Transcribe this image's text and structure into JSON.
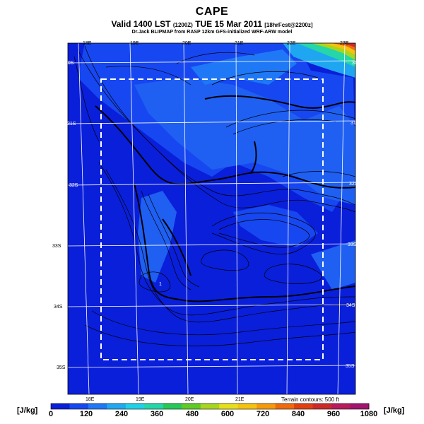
{
  "header": {
    "title": "CAPE",
    "subtitle_main": "Valid 1400 LST",
    "subtitle_small1": "(1200Z)",
    "subtitle_date": "TUE 15 Mar 2011",
    "subtitle_small2": "[18hrFcst@2200z]",
    "credit": "Dr.Jack BLIPMAP from RASP 12km GFS-initialized WRF-ARW model"
  },
  "map": {
    "lon_labels_top": [
      "18E",
      "19E",
      "20E",
      "21E",
      "22E",
      "23E"
    ],
    "lon_labels_bottom": [
      "18E",
      "19E",
      "20E",
      "21E"
    ],
    "lat_labels_left": [
      "30S",
      "31S",
      "32S",
      "33S",
      "34S",
      "35S"
    ],
    "lat_labels_right": [
      "30S",
      "31S",
      "32S",
      "33S",
      "34S",
      "35S"
    ],
    "terrain_note": "Terrain contours: 500 ft",
    "marker": "1"
  },
  "colorbar": {
    "unit_left": "[J/kg]",
    "unit_right": "[J/kg]",
    "ticks": [
      "0",
      "120",
      "240",
      "360",
      "480",
      "600",
      "720",
      "840",
      "960",
      "1080"
    ],
    "colors": [
      "#0a1fd9",
      "#1747f0",
      "#1f78f5",
      "#21a9f0",
      "#1fd1e6",
      "#25d6a8",
      "#26c957",
      "#5fcc26",
      "#a8d61e",
      "#e6e01a",
      "#f5c20f",
      "#f59a0a",
      "#f06a0a",
      "#e0400f",
      "#cc2a2a",
      "#b81c5a",
      "#a3146e"
    ]
  }
}
